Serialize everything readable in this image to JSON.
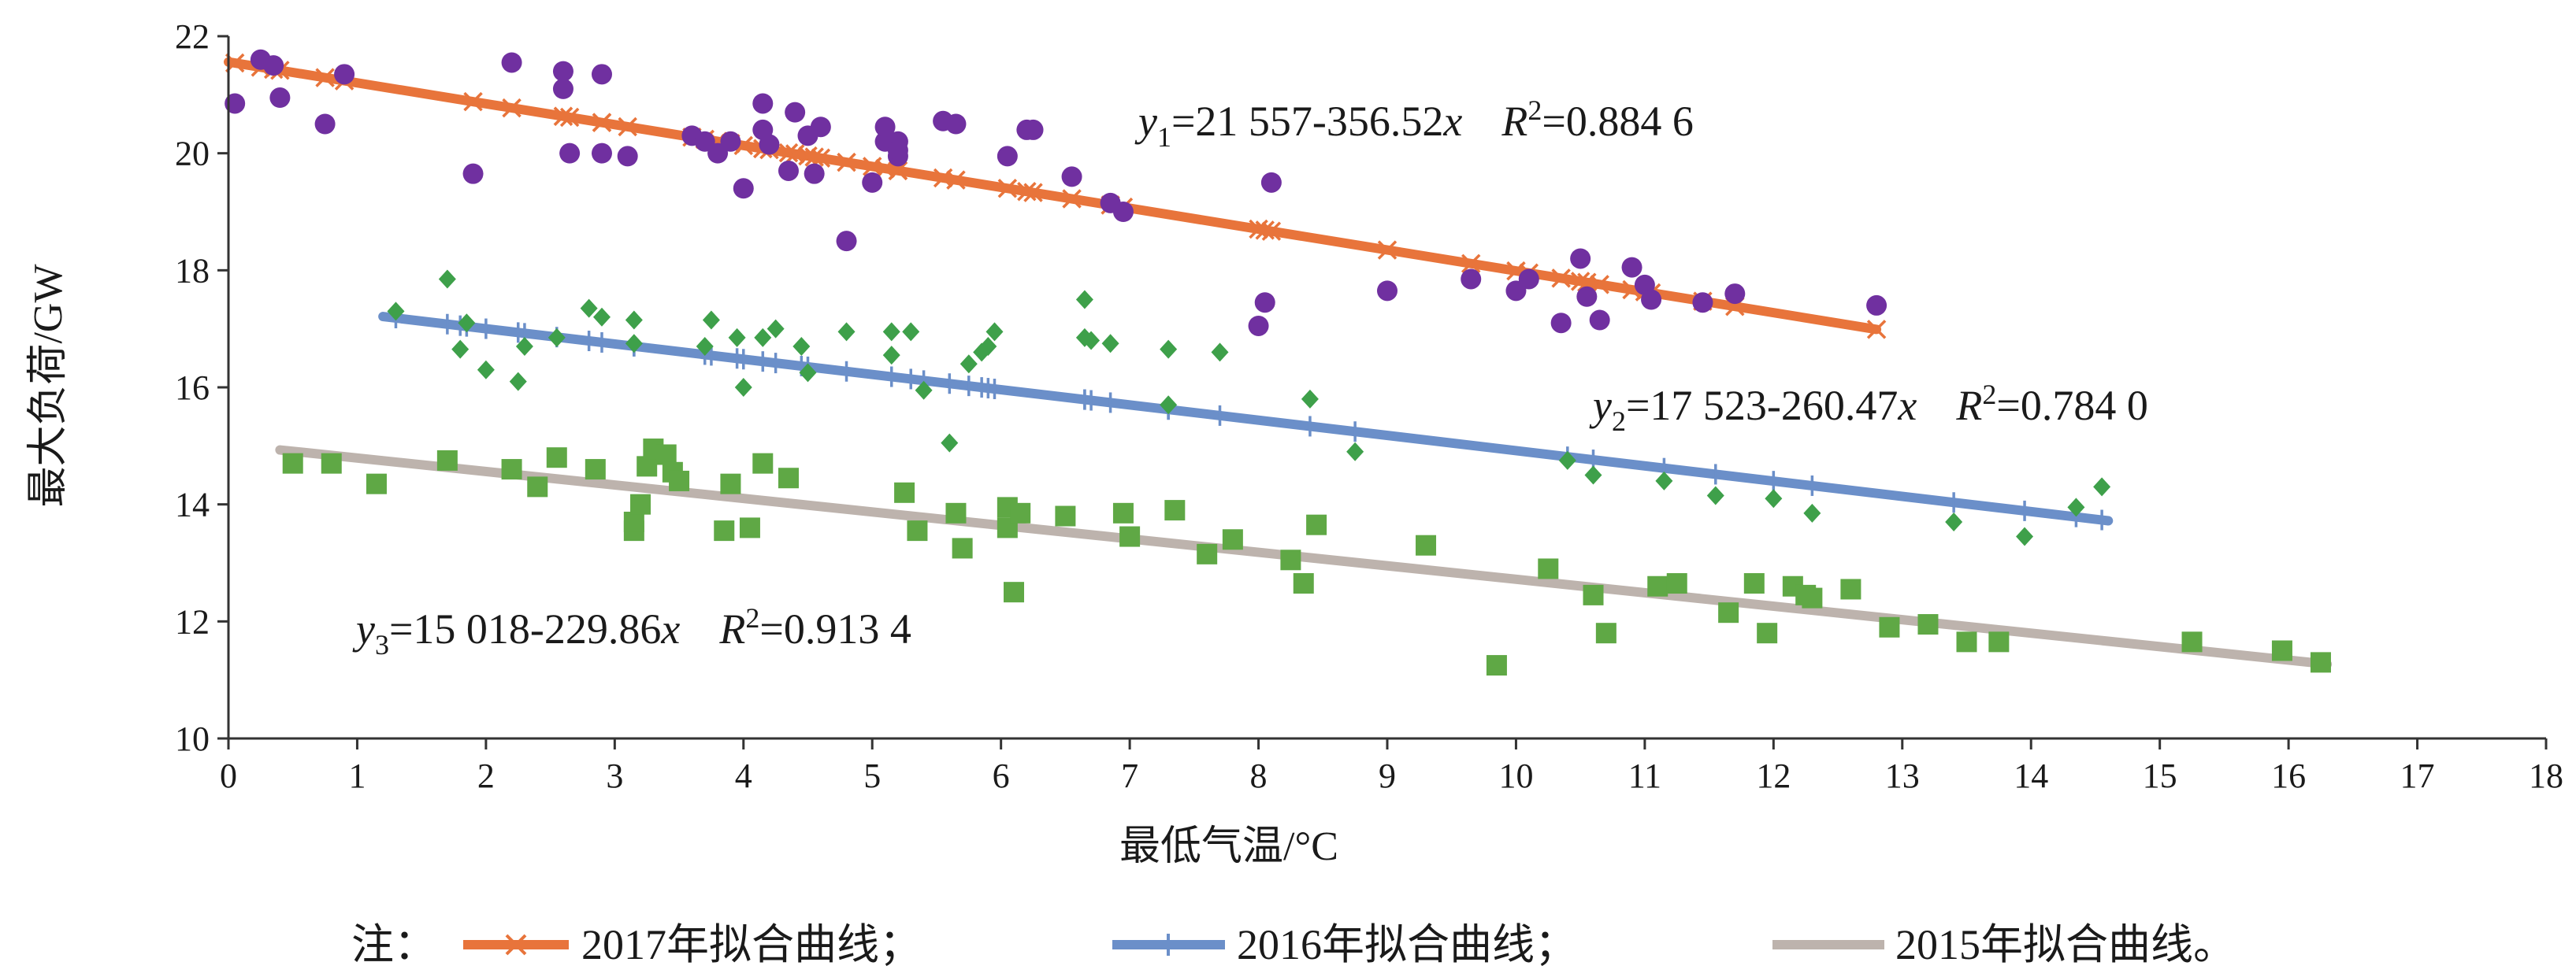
{
  "chart_data": {
    "type": "scatter",
    "xlabel": "最低气温/°C",
    "ylabel": "最大负荷/GW",
    "xlim": [
      0,
      18
    ],
    "ylim": [
      10,
      22
    ],
    "x_ticks": [
      "0",
      "1",
      "2",
      "3",
      "4",
      "5",
      "6",
      "7",
      "8",
      "9",
      "10",
      "11",
      "12",
      "13",
      "14",
      "15",
      "16",
      "17",
      "18"
    ],
    "y_ticks": [
      "10",
      "12",
      "14",
      "16",
      "18",
      "20",
      "22"
    ],
    "grid": false,
    "colors": {
      "scatter_2017": "#7030a0",
      "scatter_2016": "#3ea04a",
      "scatter_2015": "#5fa845",
      "fit_2017": "#e8743b",
      "fit_2016": "#6b8fc9",
      "fit_2015": "#bdb3ad"
    },
    "equations": [
      {
        "lhs": "y",
        "sub": "1",
        "rhs": "=21 557-356.52",
        "var": "x",
        "r": "R",
        "r_sup": "2",
        "r_val": "=0.884 6"
      },
      {
        "lhs": "y",
        "sub": "2",
        "rhs": "=17 523-260.47",
        "var": "x",
        "r": "R",
        "r_sup": "2",
        "r_val": "=0.784 0"
      },
      {
        "lhs": "y",
        "sub": "3",
        "rhs": "=15 018-229.86",
        "var": "x",
        "r": "R",
        "r_sup": "2",
        "r_val": "=0.913 4"
      }
    ],
    "legend": {
      "prefix": "注：",
      "items": [
        {
          "label": "2017年拟合曲线；"
        },
        {
          "label": "2016年拟合曲线；"
        },
        {
          "label": "2015年拟合曲线。"
        }
      ]
    },
    "fits": [
      {
        "key": "2017",
        "x_range": [
          0,
          12.8
        ],
        "y_start": 21.56,
        "y_end": 16.99,
        "marker": "x"
      },
      {
        "key": "2016",
        "x_range": [
          1.2,
          14.6
        ],
        "y_start": 17.21,
        "y_end": 13.72,
        "marker": "plus"
      },
      {
        "key": "2015",
        "x_range": [
          0.4,
          16.3
        ],
        "y_start": 14.93,
        "y_end": 11.27,
        "marker": "none"
      }
    ],
    "series": [
      {
        "key": "2017",
        "marker": "circle",
        "points": [
          [
            0.05,
            20.85
          ],
          [
            0.25,
            21.6
          ],
          [
            0.35,
            21.5
          ],
          [
            0.4,
            20.95
          ],
          [
            0.75,
            20.5
          ],
          [
            0.9,
            21.35
          ],
          [
            1.9,
            19.65
          ],
          [
            2.2,
            21.55
          ],
          [
            2.6,
            21.4
          ],
          [
            2.6,
            21.1
          ],
          [
            2.9,
            21.35
          ],
          [
            2.65,
            20.0
          ],
          [
            2.9,
            20.0
          ],
          [
            3.1,
            19.95
          ],
          [
            3.6,
            20.3
          ],
          [
            3.7,
            20.2
          ],
          [
            3.8,
            20.0
          ],
          [
            3.9,
            20.2
          ],
          [
            4.15,
            20.85
          ],
          [
            4.15,
            20.4
          ],
          [
            4.2,
            20.15
          ],
          [
            4.0,
            19.4
          ],
          [
            4.35,
            19.7
          ],
          [
            4.4,
            20.7
          ],
          [
            4.5,
            20.3
          ],
          [
            4.55,
            19.65
          ],
          [
            4.6,
            20.45
          ],
          [
            4.8,
            18.5
          ],
          [
            5.0,
            19.5
          ],
          [
            5.1,
            20.2
          ],
          [
            5.1,
            20.45
          ],
          [
            5.2,
            20.2
          ],
          [
            5.2,
            19.95
          ],
          [
            5.2,
            20.05
          ],
          [
            5.55,
            20.55
          ],
          [
            5.65,
            20.5
          ],
          [
            6.05,
            19.95
          ],
          [
            6.2,
            20.4
          ],
          [
            6.25,
            20.4
          ],
          [
            6.55,
            19.6
          ],
          [
            6.85,
            19.15
          ],
          [
            6.95,
            19.0
          ],
          [
            8.0,
            17.05
          ],
          [
            8.05,
            17.45
          ],
          [
            8.1,
            19.5
          ],
          [
            9.0,
            17.65
          ],
          [
            9.65,
            17.85
          ],
          [
            10.0,
            17.65
          ],
          [
            10.1,
            17.85
          ],
          [
            10.35,
            17.1
          ],
          [
            10.5,
            18.2
          ],
          [
            10.55,
            17.55
          ],
          [
            10.65,
            17.15
          ],
          [
            10.9,
            18.05
          ],
          [
            11.0,
            17.75
          ],
          [
            11.05,
            17.5
          ],
          [
            11.45,
            17.45
          ],
          [
            11.7,
            17.6
          ],
          [
            12.8,
            17.4
          ]
        ]
      },
      {
        "key": "2016",
        "marker": "diamond",
        "points": [
          [
            1.3,
            17.3
          ],
          [
            1.7,
            17.85
          ],
          [
            1.8,
            16.65
          ],
          [
            1.85,
            17.1
          ],
          [
            2.0,
            16.3
          ],
          [
            2.25,
            16.1
          ],
          [
            2.3,
            16.7
          ],
          [
            2.55,
            16.85
          ],
          [
            2.8,
            17.35
          ],
          [
            2.9,
            17.2
          ],
          [
            3.15,
            17.15
          ],
          [
            3.15,
            16.75
          ],
          [
            3.7,
            16.7
          ],
          [
            3.75,
            17.15
          ],
          [
            3.95,
            16.85
          ],
          [
            4.0,
            16.0
          ],
          [
            4.15,
            16.85
          ],
          [
            4.25,
            17.0
          ],
          [
            4.45,
            16.7
          ],
          [
            4.5,
            16.25
          ],
          [
            4.8,
            16.95
          ],
          [
            5.15,
            16.55
          ],
          [
            5.15,
            16.95
          ],
          [
            5.3,
            16.95
          ],
          [
            5.4,
            15.95
          ],
          [
            5.75,
            16.4
          ],
          [
            5.85,
            16.6
          ],
          [
            5.9,
            16.7
          ],
          [
            5.95,
            16.95
          ],
          [
            5.6,
            15.05
          ],
          [
            6.65,
            17.5
          ],
          [
            6.65,
            16.85
          ],
          [
            6.7,
            16.8
          ],
          [
            6.85,
            16.75
          ],
          [
            7.3,
            16.65
          ],
          [
            7.3,
            15.7
          ],
          [
            7.7,
            16.6
          ],
          [
            8.4,
            15.8
          ],
          [
            8.75,
            14.9
          ],
          [
            10.4,
            14.75
          ],
          [
            10.6,
            14.5
          ],
          [
            11.15,
            14.4
          ],
          [
            11.55,
            14.15
          ],
          [
            12.0,
            14.1
          ],
          [
            12.3,
            13.85
          ],
          [
            13.4,
            13.7
          ],
          [
            13.95,
            13.45
          ],
          [
            14.35,
            13.95
          ],
          [
            14.55,
            14.3
          ]
        ]
      },
      {
        "key": "2015",
        "marker": "square",
        "points": [
          [
            0.5,
            14.7
          ],
          [
            0.8,
            14.7
          ],
          [
            1.15,
            14.35
          ],
          [
            1.7,
            14.75
          ],
          [
            2.2,
            14.6
          ],
          [
            2.4,
            14.3
          ],
          [
            2.55,
            14.8
          ],
          [
            2.85,
            14.6
          ],
          [
            3.15,
            13.55
          ],
          [
            3.15,
            13.7
          ],
          [
            3.2,
            14.0
          ],
          [
            3.25,
            14.65
          ],
          [
            3.3,
            14.95
          ],
          [
            3.4,
            14.85
          ],
          [
            3.45,
            14.55
          ],
          [
            3.5,
            14.4
          ],
          [
            3.85,
            13.55
          ],
          [
            3.9,
            14.35
          ],
          [
            4.05,
            13.6
          ],
          [
            4.15,
            14.7
          ],
          [
            4.35,
            14.45
          ],
          [
            5.25,
            14.2
          ],
          [
            5.35,
            13.55
          ],
          [
            5.65,
            13.85
          ],
          [
            5.7,
            13.25
          ],
          [
            6.05,
            13.95
          ],
          [
            6.05,
            13.6
          ],
          [
            6.1,
            12.5
          ],
          [
            6.15,
            13.85
          ],
          [
            6.5,
            13.8
          ],
          [
            6.95,
            13.85
          ],
          [
            7.0,
            13.45
          ],
          [
            7.35,
            13.9
          ],
          [
            7.6,
            13.15
          ],
          [
            7.8,
            13.4
          ],
          [
            8.25,
            13.05
          ],
          [
            8.35,
            12.65
          ],
          [
            8.45,
            13.65
          ],
          [
            9.3,
            13.3
          ],
          [
            9.85,
            11.25
          ],
          [
            10.25,
            12.9
          ],
          [
            10.6,
            12.45
          ],
          [
            10.7,
            11.8
          ],
          [
            11.1,
            12.6
          ],
          [
            11.25,
            12.65
          ],
          [
            11.65,
            12.15
          ],
          [
            11.85,
            12.65
          ],
          [
            11.95,
            11.8
          ],
          [
            12.15,
            12.6
          ],
          [
            12.25,
            12.45
          ],
          [
            12.3,
            12.4
          ],
          [
            12.6,
            12.55
          ],
          [
            12.9,
            11.9
          ],
          [
            13.2,
            11.95
          ],
          [
            13.5,
            11.65
          ],
          [
            13.75,
            11.65
          ],
          [
            15.25,
            11.65
          ],
          [
            15.95,
            11.5
          ],
          [
            16.25,
            11.3
          ]
        ]
      }
    ]
  }
}
